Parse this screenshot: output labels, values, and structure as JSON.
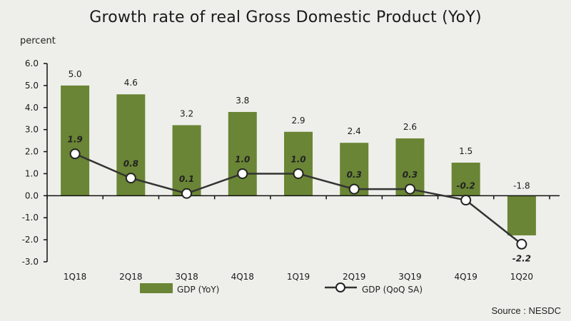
{
  "chart_data": {
    "type": "bar",
    "title": "Growth rate of real Gross Domestic Product (YoY)",
    "ylabel": "percent",
    "xlabel": "",
    "ylim": [
      -3.0,
      6.0
    ],
    "yticks": [
      "6.0",
      "5.0",
      "4.0",
      "3.0",
      "2.0",
      "1.0",
      "0.0",
      "-1.0",
      "-2.0",
      "-3.0"
    ],
    "ytick_values": [
      6,
      5,
      4,
      3,
      2,
      1,
      0,
      -1,
      -2,
      -3
    ],
    "categories": [
      "1Q18",
      "2Q18",
      "3Q18",
      "4Q18",
      "1Q19",
      "2Q19",
      "3Q19",
      "4Q19",
      "1Q20"
    ],
    "series": [
      {
        "name": "GDP (YoY)",
        "type": "bar",
        "color": "#6a8535",
        "values": [
          5.0,
          4.6,
          3.2,
          3.8,
          2.9,
          2.4,
          2.6,
          1.5,
          -1.8
        ],
        "labels": [
          "5.0",
          "4.6",
          "3.2",
          "3.8",
          "2.9",
          "2.4",
          "2.6",
          "1.5",
          "-1.8"
        ]
      },
      {
        "name": "GDP (QoQ SA)",
        "type": "line",
        "color": "#333333",
        "values": [
          1.9,
          0.8,
          0.1,
          1.0,
          1.0,
          0.3,
          0.3,
          -0.2,
          -2.2
        ],
        "labels": [
          "1.9",
          "0.8",
          "0.1",
          "1.0",
          "1.0",
          "0.3",
          "0.3",
          "-0.2",
          "-2.2"
        ]
      }
    ],
    "legend": "bottom",
    "grid": false,
    "source": "Source : NESDC"
  }
}
